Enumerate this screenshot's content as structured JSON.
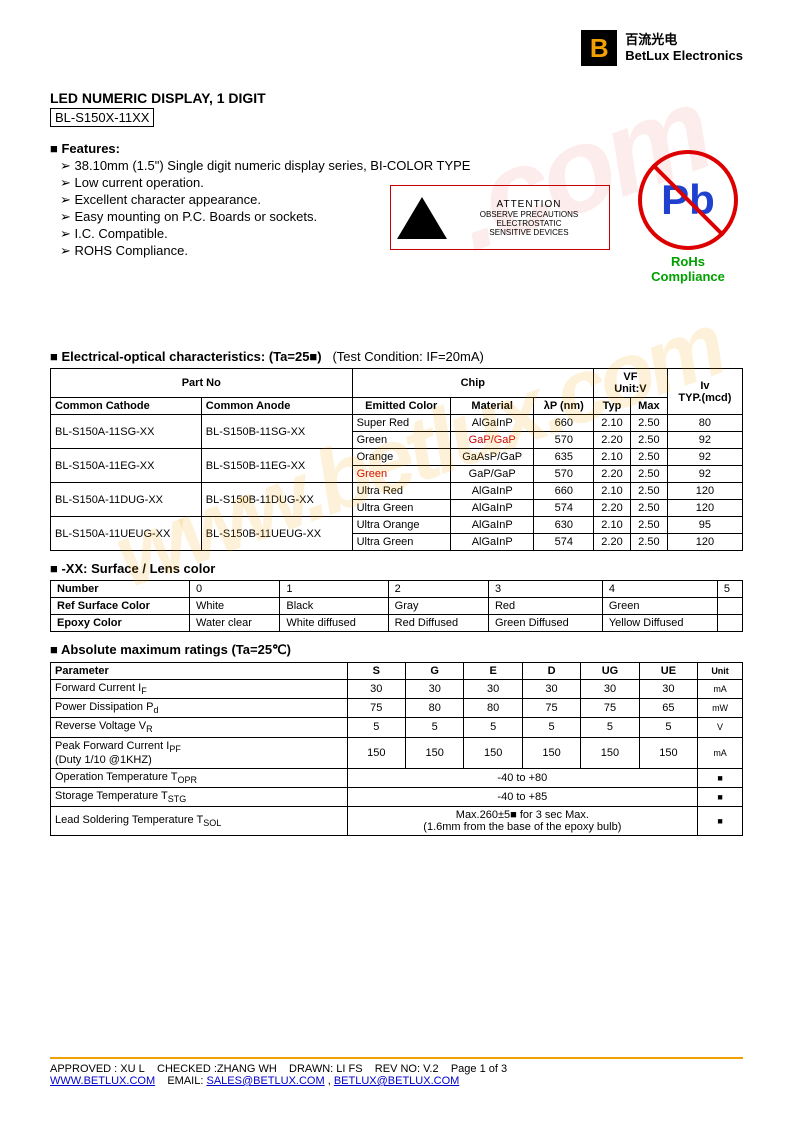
{
  "logo": {
    "cn": "百流光电",
    "en": "BetLux Electronics"
  },
  "title": "LED NUMERIC DISPLAY, 1 DIGIT",
  "part_number": "BL-S150X-11XX",
  "features": {
    "heading": "Features:",
    "items": [
      "38.10mm (1.5\") Single digit numeric display series, BI-COLOR TYPE",
      "Low current operation.",
      "Excellent character appearance.",
      "Easy mounting on P.C. Boards or sockets.",
      "I.C. Compatible.",
      "ROHS Compliance."
    ]
  },
  "esd": {
    "attention": "ATTENTION",
    "line1": "OBSERVE PRECAUTIONS",
    "line2": "ELECTROSTATIC",
    "line3": "SENSITIVE DEVICES"
  },
  "rohs": {
    "pb": "Pb",
    "label": "RoHs Compliance"
  },
  "elec": {
    "heading": "Electrical-optical characteristics: (Ta=25■)",
    "test_condition": "(Test Condition: IF=20mA)",
    "headers": {
      "part_no": "Part No",
      "chip": "Chip",
      "vf": "VF",
      "vf_unit": "Unit:V",
      "iv": "Iv",
      "iv_unit": "TYP.(mcd)",
      "cc": "Common Cathode",
      "ca": "Common Anode",
      "emitted": "Emitted Color",
      "material": "Material",
      "lambda": "λP (nm)",
      "typ": "Typ",
      "max": "Max"
    },
    "rows": [
      {
        "cc": "BL-S150A-11SG-XX",
        "ca": "BL-S150B-11SG-XX",
        "color": "Super Red",
        "mat": "AlGaInP",
        "lp": "660",
        "typ": "2.10",
        "max": "2.50",
        "iv": "80"
      },
      {
        "cc": "",
        "ca": "",
        "color": "Green",
        "mat": "GaP/GaP",
        "lp": "570",
        "typ": "2.20",
        "max": "2.50",
        "iv": "92",
        "mat_red": true
      },
      {
        "cc": "BL-S150A-11EG-XX",
        "ca": "BL-S150B-11EG-XX",
        "color": "Orange",
        "mat": "GaAsP/GaP",
        "lp": "635",
        "typ": "2.10",
        "max": "2.50",
        "iv": "92"
      },
      {
        "cc": "",
        "ca": "",
        "color": "Green",
        "mat": "GaP/GaP",
        "lp": "570",
        "typ": "2.20",
        "max": "2.50",
        "iv": "92",
        "color_red": true
      },
      {
        "cc": "BL-S150A-11DUG-XX",
        "ca": "BL-S150B-11DUG-XX",
        "color": "Ultra Red",
        "mat": "AlGaInP",
        "lp": "660",
        "typ": "2.10",
        "max": "2.50",
        "iv": "120"
      },
      {
        "cc": "",
        "ca": "",
        "color": "Ultra Green",
        "mat": "AlGaInP",
        "lp": "574",
        "typ": "2.20",
        "max": "2.50",
        "iv": "120"
      },
      {
        "cc": "BL-S150A-11UEUG-XX",
        "ca": "BL-S150B-11UEUG-XX",
        "color": "Ultra Orange",
        "mat": "AlGaInP",
        "lp": "630",
        "typ": "2.10",
        "max": "2.50",
        "iv": "95"
      },
      {
        "cc": "",
        "ca": "",
        "color": "Ultra Green",
        "mat": "AlGaInP",
        "lp": "574",
        "typ": "2.20",
        "max": "2.50",
        "iv": "120"
      }
    ]
  },
  "lens": {
    "heading": "-XX: Surface / Lens color",
    "row_labels": [
      "Number",
      "Ref Surface Color",
      "Epoxy Color"
    ],
    "cols": [
      "0",
      "1",
      "2",
      "3",
      "4",
      "5"
    ],
    "surface": [
      "White",
      "Black",
      "Gray",
      "Red",
      "Green",
      ""
    ],
    "epoxy": [
      "Water clear",
      "White diffused",
      "Red Diffused",
      "Green Diffused",
      "Yellow Diffused",
      ""
    ]
  },
  "abs": {
    "heading": "Absolute maximum ratings (Ta=25℃)",
    "col_headers": [
      "Parameter",
      "S",
      "G",
      "E",
      "D",
      "UG",
      "UE",
      "Unit"
    ],
    "rows": [
      {
        "param": "Forward Current I",
        "sub": "F",
        "vals": [
          "30",
          "30",
          "30",
          "30",
          "30",
          "30"
        ],
        "unit": "mA"
      },
      {
        "param": "Power Dissipation P",
        "sub": "d",
        "vals": [
          "75",
          "80",
          "80",
          "75",
          "75",
          "65"
        ],
        "unit": "mW"
      },
      {
        "param": "Reverse Voltage V",
        "sub": "R",
        "vals": [
          "5",
          "5",
          "5",
          "5",
          "5",
          "5"
        ],
        "unit": "V"
      },
      {
        "param": "Peak Forward Current I",
        "sub": "PF",
        "note": "(Duty 1/10 @1KHZ)",
        "vals": [
          "150",
          "150",
          "150",
          "150",
          "150",
          "150"
        ],
        "unit": "mA"
      },
      {
        "param": "Operation Temperature T",
        "sub": "OPR",
        "span": "-40 to +80",
        "unit": "■"
      },
      {
        "param": "Storage Temperature T",
        "sub": "STG",
        "span": "-40 to +85",
        "unit": "■"
      },
      {
        "param": "Lead Soldering Temperature T",
        "sub": "SOL",
        "span": "Max.260±5■  for 3 sec Max.\n(1.6mm from the base of the epoxy bulb)",
        "unit": "■"
      }
    ]
  },
  "footer": {
    "approved": "APPROVED : XU L",
    "checked": "CHECKED :ZHANG WH",
    "drawn": "DRAWN: LI FS",
    "rev": "REV NO: V.2",
    "page": "Page 1 of 3",
    "url": "WWW.BETLUX.COM",
    "email_label": "EMAIL:",
    "email1": "SALES@BETLUX.COM",
    "email_sep": ",",
    "email2": "BETLUX@BETLUX.COM"
  },
  "watermark1": "www.betlux.com",
  "watermark2": ".com"
}
